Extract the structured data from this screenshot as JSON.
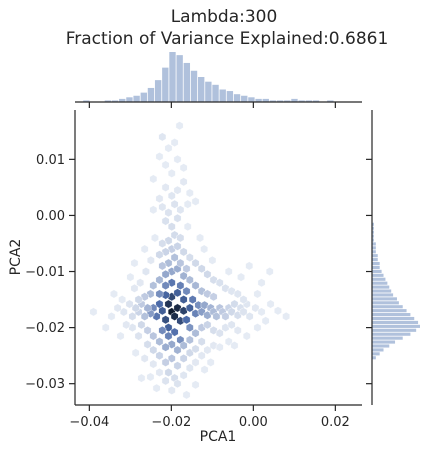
{
  "chart_data": {
    "type": "hexbin",
    "kind": "jointplot",
    "title_line1": "Lambda:300",
    "title_line2": "Fraction of Variance Explained:0.6861",
    "xlabel": "PCA1",
    "ylabel": "PCA2",
    "xlim": [
      -0.0435,
      0.0265
    ],
    "ylim": [
      -0.0338,
      0.0188
    ],
    "xticks": [
      -0.04,
      -0.02,
      0.0,
      0.02
    ],
    "xtick_labels": [
      "−0.04",
      "−0.02",
      "0.00",
      "0.02"
    ],
    "yticks": [
      -0.03,
      -0.02,
      -0.01,
      0.0,
      0.01
    ],
    "ytick_labels": [
      "−0.03",
      "−0.02",
      "−0.01",
      "0.00",
      "0.01"
    ],
    "grid": false,
    "colors": {
      "hex_dark": "#0f1b2e",
      "hex_mid": "#4b6aa8",
      "hex_light": "#eef2f8",
      "hist": "#b0c1dc",
      "axes": "#262626"
    },
    "hex_cells": [
      [
        -0.0199,
        -0.0172,
        1.0
      ],
      [
        -0.0185,
        -0.0165,
        0.92
      ],
      [
        -0.0207,
        -0.0158,
        0.85
      ],
      [
        -0.0192,
        -0.018,
        0.9
      ],
      [
        -0.0178,
        -0.0188,
        0.72
      ],
      [
        -0.0214,
        -0.0186,
        0.7
      ],
      [
        -0.017,
        -0.017,
        0.78
      ],
      [
        -0.0222,
        -0.017,
        0.62
      ],
      [
        -0.0199,
        -0.0145,
        0.74
      ],
      [
        -0.0185,
        -0.0138,
        0.6
      ],
      [
        -0.0214,
        -0.0142,
        0.58
      ],
      [
        -0.017,
        -0.015,
        0.62
      ],
      [
        -0.0229,
        -0.0158,
        0.55
      ],
      [
        -0.0207,
        -0.02,
        0.6
      ],
      [
        -0.0192,
        -0.0208,
        0.52
      ],
      [
        -0.0163,
        -0.0186,
        0.55
      ],
      [
        -0.0155,
        -0.0165,
        0.6
      ],
      [
        -0.0236,
        -0.018,
        0.5
      ],
      [
        -0.0244,
        -0.0165,
        0.42
      ],
      [
        -0.0148,
        -0.015,
        0.48
      ],
      [
        -0.0141,
        -0.0175,
        0.45
      ],
      [
        -0.0199,
        -0.012,
        0.5
      ],
      [
        -0.0214,
        -0.0125,
        0.42
      ],
      [
        -0.0178,
        -0.0125,
        0.46
      ],
      [
        -0.0229,
        -0.014,
        0.4
      ],
      [
        -0.0163,
        -0.0135,
        0.42
      ],
      [
        -0.0251,
        -0.0175,
        0.35
      ],
      [
        -0.0134,
        -0.016,
        0.4
      ],
      [
        -0.0207,
        -0.0215,
        0.45
      ],
      [
        -0.0178,
        -0.0222,
        0.4
      ],
      [
        -0.0222,
        -0.0205,
        0.42
      ],
      [
        -0.0155,
        -0.02,
        0.38
      ],
      [
        -0.0126,
        -0.0172,
        0.34
      ],
      [
        -0.0119,
        -0.016,
        0.3
      ],
      [
        -0.0112,
        -0.0178,
        0.28
      ],
      [
        -0.0104,
        -0.0165,
        0.25
      ],
      [
        -0.0097,
        -0.0172,
        0.22
      ],
      [
        -0.009,
        -0.018,
        0.2
      ],
      [
        -0.0082,
        -0.0165,
        0.18
      ],
      [
        -0.0075,
        -0.0172,
        0.16
      ],
      [
        -0.0068,
        -0.018,
        0.14
      ],
      [
        -0.006,
        -0.0165,
        0.12
      ],
      [
        -0.0053,
        -0.0172,
        0.1
      ],
      [
        -0.0046,
        -0.0158,
        0.09
      ],
      [
        -0.0038,
        -0.0178,
        0.08
      ],
      [
        -0.0031,
        -0.0165,
        0.07
      ],
      [
        -0.0024,
        -0.0172,
        0.06
      ],
      [
        -0.0016,
        -0.0158,
        0.05
      ],
      [
        -0.0009,
        -0.018,
        0.05
      ],
      [
        0.0005,
        -0.0165,
        0.04
      ],
      [
        0.002,
        -0.0172,
        0.03
      ],
      [
        0.0042,
        -0.0158,
        0.03
      ],
      [
        -0.0258,
        -0.0165,
        0.25
      ],
      [
        -0.0265,
        -0.018,
        0.2
      ],
      [
        -0.0273,
        -0.0158,
        0.16
      ],
      [
        -0.028,
        -0.0172,
        0.12
      ],
      [
        -0.0287,
        -0.0165,
        0.1
      ],
      [
        -0.0295,
        -0.018,
        0.08
      ],
      [
        -0.0302,
        -0.0158,
        0.06
      ],
      [
        -0.0316,
        -0.0172,
        0.05
      ],
      [
        -0.0331,
        -0.0165,
        0.04
      ],
      [
        -0.0346,
        -0.018,
        0.03
      ],
      [
        -0.039,
        -0.0172,
        0.03
      ],
      [
        -0.0199,
        -0.01,
        0.3
      ],
      [
        -0.0185,
        -0.0095,
        0.28
      ],
      [
        -0.0214,
        -0.0105,
        0.3
      ],
      [
        -0.017,
        -0.0108,
        0.26
      ],
      [
        -0.0229,
        -0.0115,
        0.24
      ],
      [
        -0.0155,
        -0.0115,
        0.22
      ],
      [
        -0.0207,
        -0.0085,
        0.22
      ],
      [
        -0.0192,
        -0.0075,
        0.2
      ],
      [
        -0.0178,
        -0.0085,
        0.18
      ],
      [
        -0.0222,
        -0.009,
        0.18
      ],
      [
        -0.0163,
        -0.0095,
        0.16
      ],
      [
        -0.0244,
        -0.0125,
        0.2
      ],
      [
        -0.0141,
        -0.0125,
        0.24
      ],
      [
        -0.0126,
        -0.0135,
        0.2
      ],
      [
        -0.0112,
        -0.014,
        0.16
      ],
      [
        -0.0097,
        -0.0145,
        0.14
      ],
      [
        -0.0251,
        -0.014,
        0.22
      ],
      [
        -0.0265,
        -0.0145,
        0.16
      ],
      [
        -0.028,
        -0.015,
        0.1
      ],
      [
        -0.0199,
        -0.006,
        0.14
      ],
      [
        -0.0214,
        -0.0065,
        0.12
      ],
      [
        -0.0185,
        -0.0055,
        0.12
      ],
      [
        -0.017,
        -0.0065,
        0.1
      ],
      [
        -0.0229,
        -0.007,
        0.1
      ],
      [
        -0.0207,
        -0.0045,
        0.1
      ],
      [
        -0.0192,
        -0.0035,
        0.09
      ],
      [
        -0.0178,
        -0.004,
        0.08
      ],
      [
        -0.0222,
        -0.005,
        0.08
      ],
      [
        -0.0155,
        -0.0075,
        0.08
      ],
      [
        -0.0141,
        -0.0085,
        0.1
      ],
      [
        -0.0126,
        -0.0095,
        0.1
      ],
      [
        -0.0112,
        -0.0105,
        0.1
      ],
      [
        -0.0097,
        -0.0115,
        0.08
      ],
      [
        -0.0082,
        -0.012,
        0.07
      ],
      [
        -0.0068,
        -0.013,
        0.06
      ],
      [
        -0.0053,
        -0.0135,
        0.05
      ],
      [
        -0.0038,
        -0.014,
        0.05
      ],
      [
        -0.0024,
        -0.015,
        0.05
      ],
      [
        -0.0199,
        -0.002,
        0.08
      ],
      [
        -0.0214,
        -0.001,
        0.07
      ],
      [
        -0.0185,
        -0.0005,
        0.07
      ],
      [
        -0.0207,
        0.0005,
        0.06
      ],
      [
        -0.0192,
        0.002,
        0.06
      ],
      [
        -0.0178,
        0.001,
        0.05
      ],
      [
        -0.0222,
        0.0015,
        0.05
      ],
      [
        -0.0199,
        0.0035,
        0.05
      ],
      [
        -0.0214,
        0.005,
        0.04
      ],
      [
        -0.0185,
        0.0045,
        0.04
      ],
      [
        -0.017,
        0.006,
        0.04
      ],
      [
        -0.0229,
        0.003,
        0.04
      ],
      [
        -0.0199,
        0.0075,
        0.03
      ],
      [
        -0.0214,
        0.009,
        0.03
      ],
      [
        -0.0185,
        0.01,
        0.03
      ],
      [
        -0.0207,
        0.012,
        0.03
      ],
      [
        -0.0222,
        0.014,
        0.05
      ],
      [
        -0.0192,
        0.013,
        0.03
      ],
      [
        -0.0229,
        0.0105,
        0.03
      ],
      [
        -0.017,
        0.0085,
        0.03
      ],
      [
        -0.0244,
        0.0065,
        0.03
      ],
      [
        -0.0155,
        0.004,
        0.03
      ],
      [
        -0.0141,
        0.0025,
        0.03
      ],
      [
        -0.0244,
        0.001,
        0.03
      ],
      [
        -0.0199,
        -0.023,
        0.3
      ],
      [
        -0.0185,
        -0.024,
        0.26
      ],
      [
        -0.0214,
        -0.0235,
        0.28
      ],
      [
        -0.017,
        -0.0232,
        0.22
      ],
      [
        -0.0229,
        -0.0225,
        0.22
      ],
      [
        -0.0155,
        -0.0222,
        0.2
      ],
      [
        -0.0141,
        -0.021,
        0.22
      ],
      [
        -0.0244,
        -0.0215,
        0.18
      ],
      [
        -0.0126,
        -0.02,
        0.16
      ],
      [
        -0.0112,
        -0.0195,
        0.12
      ],
      [
        -0.0258,
        -0.0205,
        0.14
      ],
      [
        -0.0273,
        -0.0195,
        0.1
      ],
      [
        -0.0199,
        -0.0255,
        0.18
      ],
      [
        -0.0214,
        -0.0262,
        0.14
      ],
      [
        -0.0185,
        -0.0268,
        0.12
      ],
      [
        -0.0207,
        -0.028,
        0.1
      ],
      [
        -0.0192,
        -0.029,
        0.08
      ],
      [
        -0.017,
        -0.0255,
        0.12
      ],
      [
        -0.0229,
        -0.025,
        0.12
      ],
      [
        -0.0155,
        -0.0245,
        0.1
      ],
      [
        -0.0244,
        -0.024,
        0.1
      ],
      [
        -0.0141,
        -0.0238,
        0.08
      ],
      [
        -0.0258,
        -0.023,
        0.08
      ],
      [
        -0.0126,
        -0.0225,
        0.08
      ],
      [
        -0.0097,
        -0.0205,
        0.08
      ],
      [
        -0.0082,
        -0.021,
        0.06
      ],
      [
        -0.0068,
        -0.02,
        0.05
      ],
      [
        -0.0053,
        -0.0195,
        0.05
      ],
      [
        -0.0038,
        -0.0205,
        0.04
      ],
      [
        -0.028,
        -0.0215,
        0.06
      ],
      [
        -0.0295,
        -0.02,
        0.05
      ],
      [
        -0.031,
        -0.0195,
        0.04
      ],
      [
        -0.0185,
        -0.03,
        0.06
      ],
      [
        -0.0214,
        -0.0295,
        0.06
      ],
      [
        -0.0199,
        -0.0312,
        0.04
      ],
      [
        -0.017,
        -0.0285,
        0.05
      ],
      [
        -0.0229,
        -0.028,
        0.04
      ],
      [
        -0.0155,
        -0.0272,
        0.05
      ],
      [
        -0.0244,
        -0.0265,
        0.04
      ],
      [
        -0.0141,
        -0.0262,
        0.04
      ],
      [
        -0.0265,
        -0.0255,
        0.04
      ],
      [
        -0.0126,
        -0.025,
        0.04
      ],
      [
        -0.0112,
        -0.024,
        0.04
      ],
      [
        -0.0287,
        -0.0245,
        0.03
      ],
      [
        -0.0097,
        -0.0232,
        0.04
      ],
      [
        -0.0082,
        -0.0235,
        0.03
      ],
      [
        -0.006,
        -0.0225,
        0.03
      ],
      [
        -0.0046,
        -0.0232,
        0.03
      ],
      [
        -0.0016,
        -0.0215,
        0.03
      ],
      [
        0.001,
        -0.02,
        0.03
      ],
      [
        0.003,
        -0.0188,
        0.03
      ],
      [
        -0.0324,
        -0.0215,
        0.03
      ],
      [
        -0.036,
        -0.02,
        0.03
      ],
      [
        -0.0273,
        -0.029,
        0.03
      ],
      [
        -0.0141,
        -0.0302,
        0.03
      ],
      [
        -0.0163,
        -0.032,
        0.03
      ],
      [
        -0.0236,
        -0.0308,
        0.03
      ],
      [
        -0.0251,
        -0.0288,
        0.03
      ],
      [
        -0.0119,
        -0.0275,
        0.03
      ],
      [
        -0.0104,
        -0.0262,
        0.03
      ],
      [
        0.002,
        -0.012,
        0.03
      ],
      [
        0.004,
        -0.01,
        0.03
      ],
      [
        -0.001,
        -0.009,
        0.03
      ],
      [
        -0.003,
        -0.011,
        0.03
      ],
      [
        -0.006,
        -0.01,
        0.03
      ],
      [
        -0.012,
        -0.006,
        0.03
      ],
      [
        -0.01,
        -0.008,
        0.03
      ],
      [
        -0.0262,
        -0.01,
        0.05
      ],
      [
        -0.0276,
        -0.012,
        0.04
      ],
      [
        -0.029,
        -0.013,
        0.04
      ],
      [
        -0.03,
        -0.011,
        0.03
      ],
      [
        -0.025,
        -0.008,
        0.04
      ],
      [
        -0.0265,
        -0.006,
        0.03
      ],
      [
        -0.024,
        -0.004,
        0.03
      ],
      [
        -0.013,
        -0.004,
        0.03
      ],
      [
        -0.016,
        -0.002,
        0.03
      ],
      [
        -0.016,
        0.002,
        0.03
      ],
      [
        -0.029,
        -0.0085,
        0.03
      ],
      [
        -0.032,
        -0.015,
        0.03
      ],
      [
        -0.034,
        -0.014,
        0.03
      ],
      [
        0.006,
        -0.017,
        0.03
      ],
      [
        0.008,
        -0.018,
        0.03
      ],
      [
        0.001,
        -0.014,
        0.03
      ],
      [
        -0.018,
        0.016,
        0.03
      ]
    ],
    "x_marginal": {
      "bin_edges_start": -0.0415,
      "bin_width": 0.00175,
      "counts": [
        1,
        0,
        0,
        1,
        1,
        2,
        3,
        4,
        6,
        9,
        14,
        22,
        32,
        30,
        25,
        20,
        16,
        13,
        11,
        8,
        7,
        5,
        4,
        3,
        2,
        2,
        1,
        1,
        1,
        2,
        1,
        1,
        1,
        0,
        1,
        0,
        0,
        0,
        0
      ]
    },
    "y_marginal": {
      "bin_edges_start": -0.0258,
      "bin_width": 0.0007,
      "counts": [
        2,
        4,
        6,
        9,
        12,
        16,
        20,
        23,
        25,
        24,
        22,
        20,
        18,
        16,
        14,
        13,
        11,
        10,
        9,
        8,
        7,
        6,
        5,
        4,
        4,
        3,
        3,
        2,
        2,
        2,
        1,
        1,
        1,
        1,
        1,
        0,
        0
      ]
    }
  }
}
